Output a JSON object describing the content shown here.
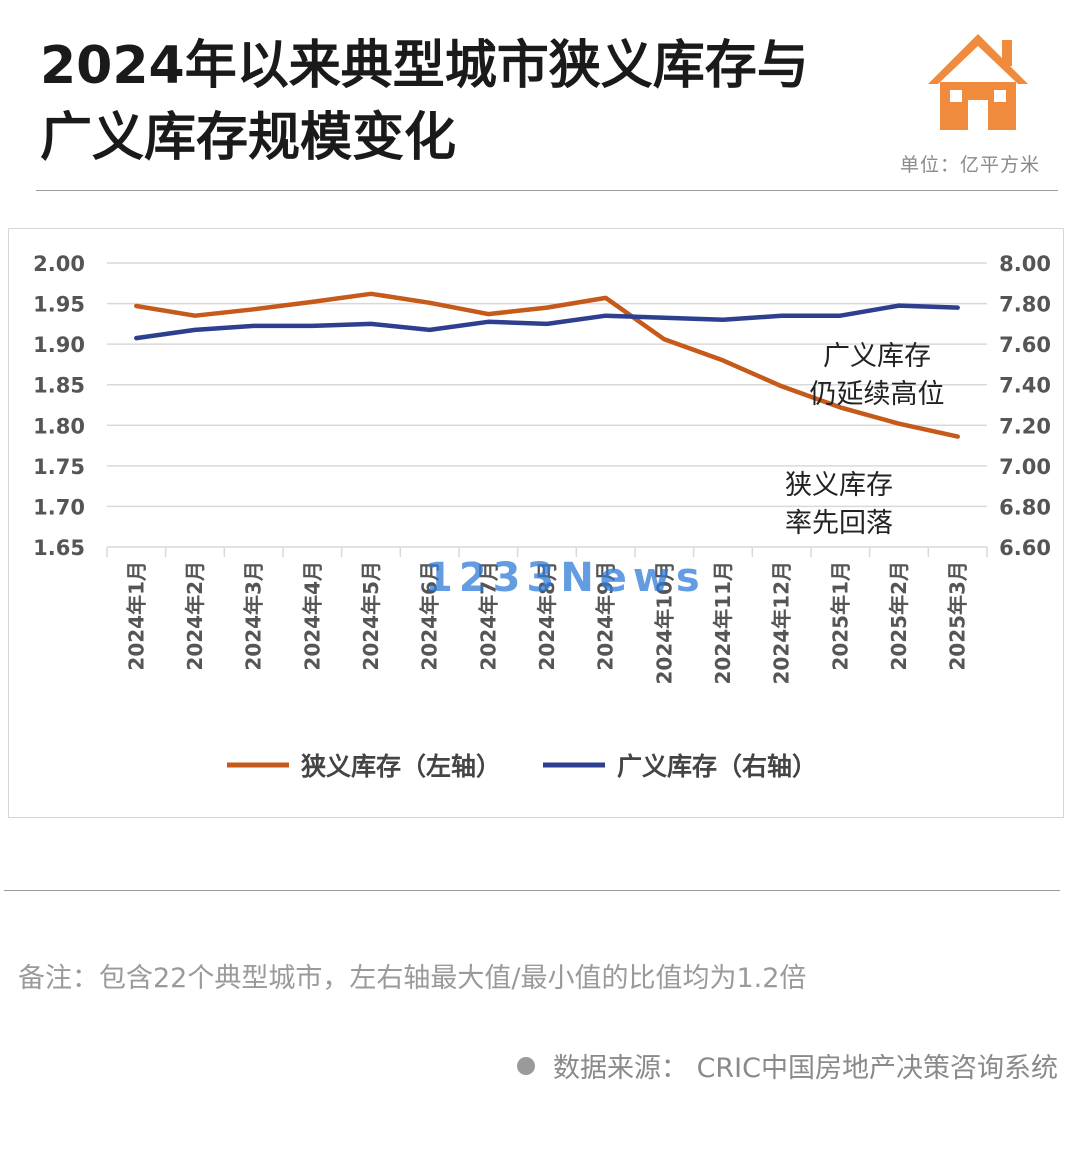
{
  "title": "2024年以来典型城市狭义库存与广义库存规模变化",
  "unit": "单位：亿平方米",
  "note": "备注：包含22个典型城市，左右轴最大值/最小值的比值均为1.2倍",
  "source": "数据来源：  CRIC中国房地产决策咨询系统",
  "watermark": "1233News",
  "colors": {
    "narrow": "#C55A1A",
    "broad": "#2E3F8F",
    "logo": "#F08A3C"
  },
  "chart_data": {
    "type": "line",
    "categories": [
      "2024年1月",
      "2024年2月",
      "2024年3月",
      "2024年4月",
      "2024年5月",
      "2024年6月",
      "2024年7月",
      "2024年8月",
      "2024年9月",
      "2024年10月",
      "2024年11月",
      "2024年12月",
      "2025年1月",
      "2025年2月",
      "2025年3月"
    ],
    "series": [
      {
        "name": "狭义库存（左轴）",
        "axis": "left",
        "values": [
          1.947,
          1.935,
          1.943,
          1.952,
          1.962,
          1.951,
          1.937,
          1.945,
          1.957,
          1.906,
          1.88,
          1.848,
          1.822,
          1.802,
          1.786
        ]
      },
      {
        "name": "广义库存（右轴）",
        "axis": "right",
        "values": [
          7.63,
          7.67,
          7.69,
          7.69,
          7.7,
          7.67,
          7.71,
          7.7,
          7.74,
          7.73,
          7.72,
          7.74,
          7.74,
          7.79,
          7.78
        ]
      }
    ],
    "left_axis": {
      "min": 1.65,
      "max": 2.0,
      "ticks": [
        "2.00",
        "1.95",
        "1.90",
        "1.85",
        "1.80",
        "1.75",
        "1.70",
        "1.65"
      ]
    },
    "right_axis": {
      "min": 6.6,
      "max": 8.0,
      "ticks": [
        "8.00",
        "7.80",
        "7.60",
        "7.40",
        "7.20",
        "7.00",
        "6.80",
        "6.60"
      ]
    },
    "annotations": [
      {
        "lines": [
          "广义库存",
          "仍延续高位"
        ]
      },
      {
        "lines": [
          "狭义库存",
          "率先回落"
        ]
      }
    ],
    "grid": true,
    "legend": "bottom"
  }
}
